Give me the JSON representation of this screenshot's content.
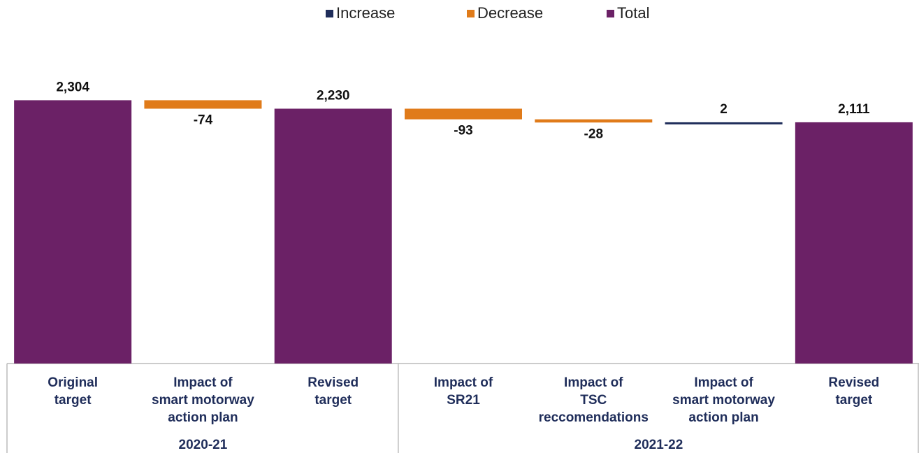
{
  "chart_data": {
    "type": "waterfall",
    "legend": [
      {
        "name": "Increase",
        "color": "#1f2d5a"
      },
      {
        "name": "Decrease",
        "color": "#e07b1a"
      },
      {
        "name": "Total",
        "color": "#6b2166"
      }
    ],
    "categories": [
      [
        "Original",
        "target"
      ],
      [
        "Impact of",
        "smart motorway",
        "action plan"
      ],
      [
        "Revised",
        "target"
      ],
      [
        "Impact of",
        "SR21"
      ],
      [
        "Impact of",
        "TSC",
        "reccomendations"
      ],
      [
        "Impact of",
        "smart motorway",
        "action plan"
      ],
      [
        "Revised",
        "target"
      ]
    ],
    "category_groups": [
      "2020-21",
      "2020-21",
      "2020-21",
      "2021-22",
      "2021-22",
      "2021-22",
      "2021-22"
    ],
    "measures": [
      "total",
      "relative",
      "total",
      "relative",
      "relative",
      "relative",
      "total"
    ],
    "values": [
      2304,
      -74,
      2230,
      -93,
      -28,
      2,
      2111
    ],
    "value_labels": [
      "2,304",
      "-74",
      "2,230",
      "-93",
      "-28",
      "2",
      "2,111"
    ],
    "ylim": [
      0,
      2600
    ]
  }
}
